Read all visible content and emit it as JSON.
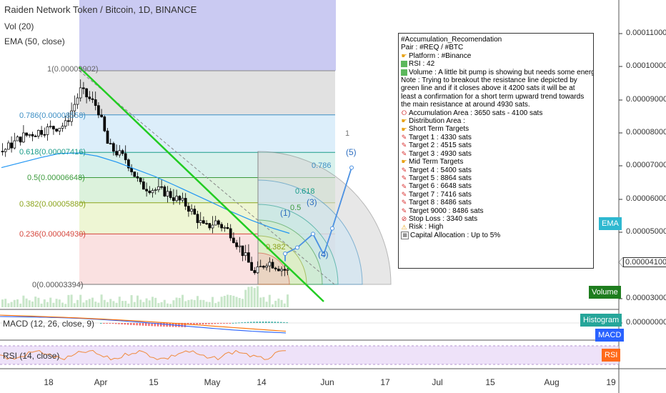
{
  "header": {
    "title": "Raiden Network Token / Bitcoin, 1D, BINANCE",
    "vol": "Vol (20)",
    "ema": "EMA (50, close)"
  },
  "price_axis": {
    "ticks": [
      "0.00011000",
      "0.00010000",
      "0.00009000",
      "0.00008000",
      "0.00007000",
      "0.00006000",
      "0.00005000",
      "0.00004100",
      "0.00003000",
      "0.00000000"
    ]
  },
  "date_axis": {
    "ticks": [
      "18",
      "Apr",
      "15",
      "May",
      "14",
      "Jun",
      "17",
      "Jul",
      "15",
      "Aug",
      "19"
    ]
  },
  "fib_levels": [
    {
      "label": "1(0.00009902)",
      "ratio": "1"
    },
    {
      "label": "0.786(0.00008558)",
      "ratio": "0.786"
    },
    {
      "label": "0.618(0.00007416)",
      "ratio": "0.618"
    },
    {
      "label": "0.5(0.00006648)",
      "ratio": "0.5"
    },
    {
      "label": "0.382(0.00005880)",
      "ratio": "0.382"
    },
    {
      "label": "0.236(0.00004930)",
      "ratio": "0.236"
    },
    {
      "label": "0(0.00003394)",
      "ratio": "0"
    }
  ],
  "fan_labels": [
    "1",
    "0.786",
    "0.618",
    "0.5",
    "0.382"
  ],
  "wave_labels": [
    "(1)",
    "(3)",
    "(5)",
    "(4)"
  ],
  "tags": {
    "ema": "EMA",
    "volume": "Volume",
    "histogram": "Histogram",
    "macd": "MACD",
    "rsi": "RSI",
    "current_price": "0.00004100"
  },
  "indicators": {
    "macd_label": "MACD (12, 26, close, 9)",
    "rsi_label": "RSI (14, close)"
  },
  "note": {
    "lines": [
      {
        "icon": "",
        "text": "#Accumulation_Recomendation"
      },
      {
        "icon": "",
        "text": "Pair : #REQ / #BTC"
      },
      {
        "icon": "hand",
        "text": "Platform : #Binance"
      },
      {
        "icon": "green",
        "text": "RSI : 42"
      },
      {
        "icon": "green",
        "text": "Volume : A little bit pump is showing but needs some energy."
      },
      {
        "icon": "",
        "text": "Note : Trying to breakout the resistance line depicted by green line and if it closes above it 4200 sats it will be at least a confirmation for a short term upward trend towards the main resistance at around 4930 sats."
      },
      {
        "icon": "ring",
        "text": "Accumulation Area : 3650 sats - 4100 sats"
      },
      {
        "icon": "hand",
        "text": "Distribution Area :"
      },
      {
        "icon": "hand",
        "text": "Short Term Targets"
      },
      {
        "icon": "pin",
        "text": "Target 1 : 4330 sats"
      },
      {
        "icon": "pin",
        "text": "Target 2 : 4515 sats"
      },
      {
        "icon": "pin",
        "text": "Target 3 : 4930 sats"
      },
      {
        "icon": "hand",
        "text": "Mid Term Targets"
      },
      {
        "icon": "pin",
        "text": "Target 4 : 5400 sats"
      },
      {
        "icon": "pin",
        "text": "Target 5 : 8864 sats"
      },
      {
        "icon": "pin",
        "text": "Target 6 : 6648 sats"
      },
      {
        "icon": "pin",
        "text": "Target 7 : 7416 sats"
      },
      {
        "icon": "pin",
        "text": "Target 8 : 8486 sats"
      },
      {
        "icon": "pin",
        "text": "Target 9000 : 8486 sats"
      },
      {
        "icon": "stop",
        "text": "Stop Loss : 3340 sats"
      },
      {
        "icon": "warn",
        "text": "Risk : High"
      },
      {
        "icon": "calc",
        "text": "Capital Allocation : Up to 5%"
      }
    ]
  },
  "colors": {
    "candle": "#000000",
    "ema_line": "#2196f3",
    "trendline": "#22cc22",
    "projection": "#4a90e2",
    "purple_box": "#b8b8ee",
    "ema_tag": "#2eb8d0",
    "volume_tag": "#1e7d1e",
    "histogram_tag": "#26a69a",
    "macd_tag": "#2962ff",
    "rsi_tag": "#ff6a1a"
  },
  "chart_data": {
    "type": "candlestick",
    "series": [
      {
        "name": "EMA (50, close)",
        "values": [
          6.95e-05,
          7.1e-05,
          7.25e-05,
          7.38e-05,
          7.4e-05,
          7.3e-05,
          7.12e-05,
          6.9e-05,
          6.68e-05,
          6.42e-05,
          6.15e-05,
          5.88e-05,
          5.6e-05,
          5.35e-05,
          5.13e-05,
          4.95e-05
        ]
      },
      {
        "name": "Projection",
        "values": [
          4.1e-05,
          4.33e-05,
          4.515e-05,
          4.93e-05,
          4.3e-05,
          5.1e-05,
          6.95e-05
        ]
      }
    ],
    "ylim": [
      2.6e-05,
      0.000115
    ],
    "fib_levels": [
      9.902e-05,
      8.558e-05,
      7.416e-05,
      6.648e-05,
      5.88e-05,
      4.93e-05,
      3.394e-05
    ]
  }
}
